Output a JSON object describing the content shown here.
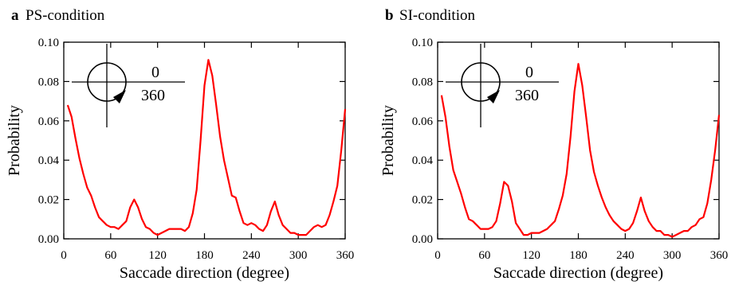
{
  "chart_data": [
    {
      "type": "line",
      "panel_letter": "a",
      "title": "PS-condition",
      "xlabel": "Saccade direction (degree)",
      "ylabel": "Probability",
      "xlim": [
        0,
        360
      ],
      "ylim": [
        0,
        0.1
      ],
      "xticks": [
        0,
        60,
        120,
        180,
        240,
        300,
        360
      ],
      "xtick_labels": [
        "0",
        "60",
        "120",
        "180",
        "240",
        "300",
        "360"
      ],
      "yticks": [
        0,
        0.02,
        0.04,
        0.06,
        0.08,
        0.1
      ],
      "ytick_labels": [
        "0.00",
        "0.02",
        "0.04",
        "0.06",
        "0.08",
        "0.10"
      ],
      "grid": false,
      "inset_labels": [
        "0",
        "360"
      ],
      "series": [
        {
          "color": "#ff0000",
          "x": [
            5,
            10,
            15,
            20,
            25,
            30,
            35,
            40,
            45,
            50,
            55,
            60,
            65,
            70,
            75,
            80,
            85,
            90,
            95,
            100,
            105,
            110,
            115,
            120,
            125,
            130,
            135,
            140,
            145,
            150,
            155,
            160,
            165,
            170,
            175,
            180,
            185,
            190,
            195,
            200,
            205,
            210,
            215,
            220,
            225,
            230,
            235,
            240,
            245,
            250,
            255,
            260,
            265,
            270,
            275,
            280,
            285,
            290,
            295,
            300,
            305,
            310,
            315,
            320,
            325,
            330,
            335,
            340,
            345,
            350,
            355,
            360
          ],
          "y": [
            0.068,
            0.062,
            0.051,
            0.041,
            0.033,
            0.026,
            0.022,
            0.016,
            0.011,
            0.009,
            0.007,
            0.006,
            0.006,
            0.005,
            0.007,
            0.009,
            0.016,
            0.02,
            0.016,
            0.01,
            0.006,
            0.005,
            0.003,
            0.002,
            0.003,
            0.004,
            0.005,
            0.005,
            0.005,
            0.005,
            0.004,
            0.006,
            0.013,
            0.025,
            0.05,
            0.078,
            0.091,
            0.083,
            0.068,
            0.052,
            0.04,
            0.031,
            0.022,
            0.021,
            0.014,
            0.008,
            0.007,
            0.008,
            0.007,
            0.005,
            0.004,
            0.007,
            0.014,
            0.019,
            0.012,
            0.007,
            0.005,
            0.003,
            0.003,
            0.002,
            0.002,
            0.002,
            0.004,
            0.006,
            0.007,
            0.006,
            0.007,
            0.012,
            0.019,
            0.027,
            0.045,
            0.066
          ]
        }
      ]
    },
    {
      "type": "line",
      "panel_letter": "b",
      "title": "SI-condition",
      "xlabel": "Saccade direction (degree)",
      "ylabel": "Probability",
      "xlim": [
        0,
        360
      ],
      "ylim": [
        0,
        0.1
      ],
      "xticks": [
        0,
        60,
        120,
        180,
        240,
        300,
        360
      ],
      "xtick_labels": [
        "0",
        "60",
        "120",
        "180",
        "240",
        "300",
        "360"
      ],
      "yticks": [
        0,
        0.02,
        0.04,
        0.06,
        0.08,
        0.1
      ],
      "ytick_labels": [
        "0.00",
        "0.02",
        "0.04",
        "0.06",
        "0.08",
        "0.10"
      ],
      "grid": false,
      "inset_labels": [
        "0",
        "360"
      ],
      "series": [
        {
          "color": "#ff0000",
          "x": [
            5,
            10,
            15,
            20,
            25,
            30,
            35,
            40,
            45,
            50,
            55,
            60,
            65,
            70,
            75,
            80,
            85,
            90,
            95,
            100,
            105,
            110,
            115,
            120,
            125,
            130,
            135,
            140,
            145,
            150,
            155,
            160,
            165,
            170,
            175,
            180,
            185,
            190,
            195,
            200,
            205,
            210,
            215,
            220,
            225,
            230,
            235,
            240,
            245,
            250,
            255,
            260,
            265,
            270,
            275,
            280,
            285,
            290,
            295,
            300,
            305,
            310,
            315,
            320,
            325,
            330,
            335,
            340,
            345,
            350,
            355,
            360
          ],
          "y": [
            0.073,
            0.062,
            0.047,
            0.035,
            0.029,
            0.023,
            0.016,
            0.01,
            0.009,
            0.007,
            0.005,
            0.005,
            0.005,
            0.006,
            0.009,
            0.018,
            0.029,
            0.027,
            0.019,
            0.008,
            0.005,
            0.002,
            0.002,
            0.003,
            0.003,
            0.003,
            0.004,
            0.005,
            0.007,
            0.009,
            0.015,
            0.022,
            0.033,
            0.052,
            0.075,
            0.089,
            0.078,
            0.062,
            0.045,
            0.034,
            0.027,
            0.021,
            0.016,
            0.012,
            0.009,
            0.007,
            0.005,
            0.004,
            0.005,
            0.008,
            0.014,
            0.021,
            0.014,
            0.009,
            0.006,
            0.004,
            0.004,
            0.002,
            0.002,
            0.001,
            0.002,
            0.003,
            0.004,
            0.004,
            0.006,
            0.007,
            0.01,
            0.011,
            0.018,
            0.03,
            0.045,
            0.063
          ]
        }
      ]
    }
  ]
}
